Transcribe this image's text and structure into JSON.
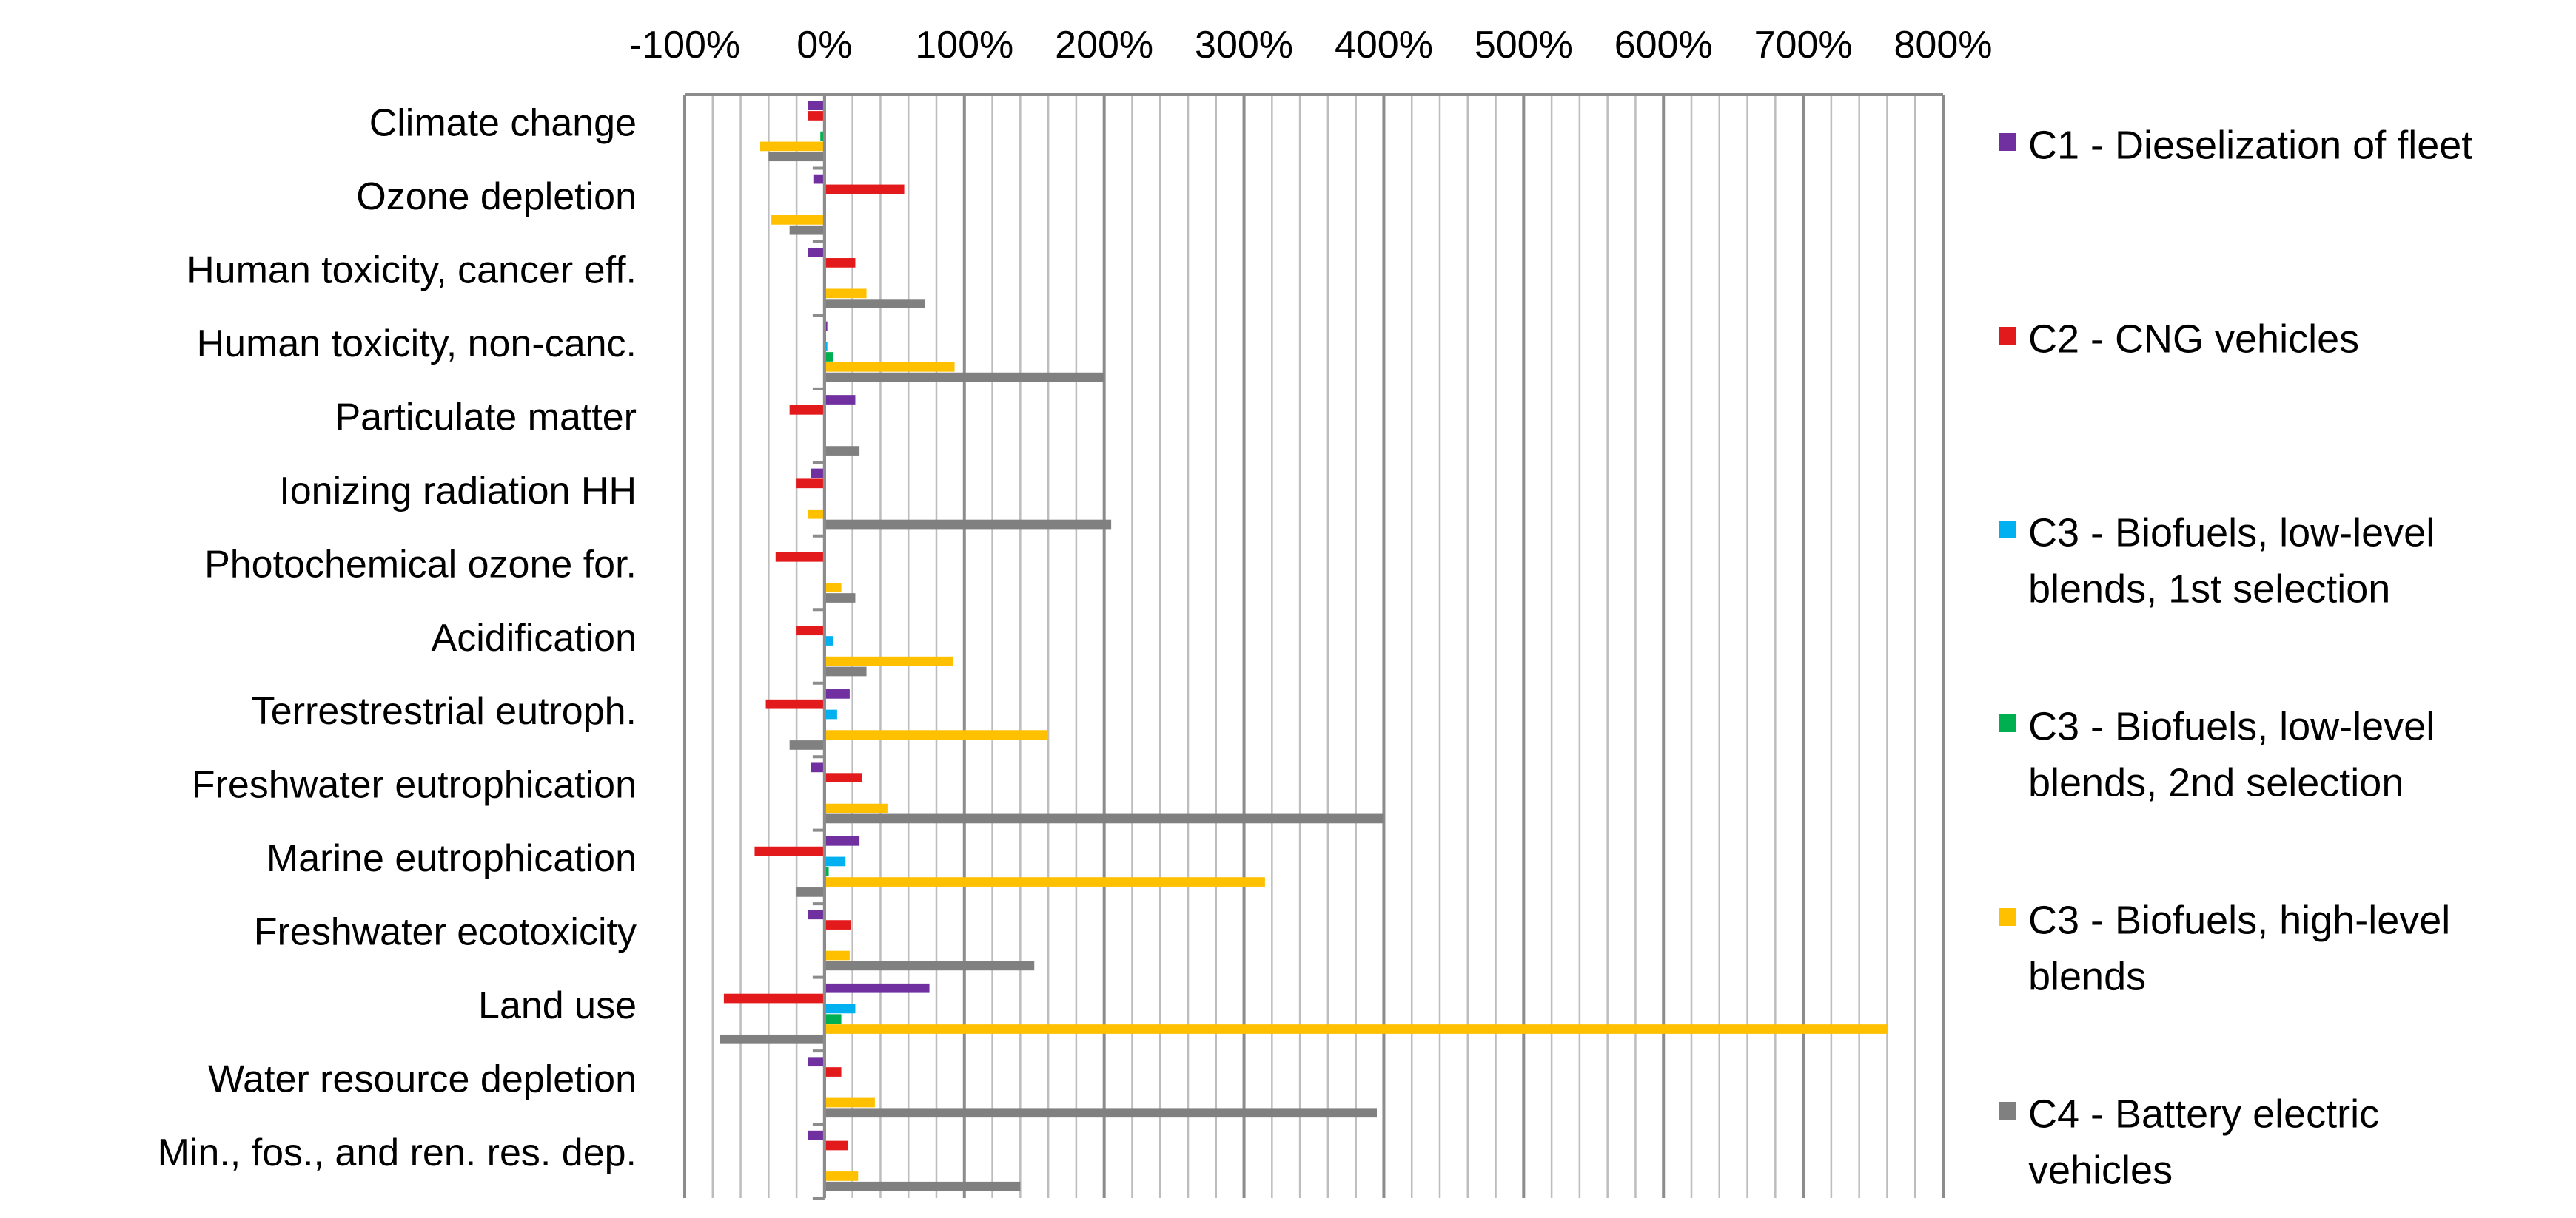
{
  "chart_data": {
    "type": "bar",
    "orientation": "horizontal",
    "x_unit": "%",
    "xlim": [
      -100,
      800
    ],
    "x_ticks": [
      -100,
      0,
      100,
      200,
      300,
      400,
      500,
      600,
      700,
      800
    ],
    "x_tick_labels": [
      "-100%",
      "0%",
      "100%",
      "200%",
      "300%",
      "400%",
      "500%",
      "600%",
      "700%",
      "800%"
    ],
    "x_axis_position": "top",
    "grid": true,
    "minor_grid_step": 20,
    "legend_position": "right",
    "title": "",
    "xlabel": "",
    "ylabel": "",
    "categories": [
      "Climate change",
      "Ozone depletion",
      "Human toxicity, cancer eff.",
      "Human toxicity, non-canc.",
      "Particulate matter",
      "Ionizing radiation HH",
      "Photochemical ozone for.",
      "Acidification",
      "Terrestrestrial eutroph.",
      "Freshwater eutrophication",
      "Marine eutrophication",
      "Freshwater ecotoxicity",
      "Land use",
      "Water resource depletion",
      "Min., fos., and ren. res. dep."
    ],
    "series": [
      {
        "name": "C1 - Dieselization of fleet",
        "color": "#7030A0",
        "values": [
          -12,
          -8,
          -12,
          2,
          22,
          -10,
          -1,
          -1,
          18,
          -10,
          25,
          -12,
          75,
          -12,
          -12
        ]
      },
      {
        "name": "C2 - CNG vehicles",
        "color": "#E31A1C",
        "values": [
          -12,
          57,
          22,
          1,
          -25,
          -20,
          -35,
          -20,
          -42,
          27,
          -50,
          19,
          -72,
          12,
          17
        ]
      },
      {
        "name": "C3 - Biofuels, low-level blends, 1st selection",
        "color": "#00B0F0",
        "values": [
          -1,
          0,
          1,
          2,
          0,
          0,
          0,
          6,
          9,
          1,
          15,
          1,
          22,
          1,
          1
        ]
      },
      {
        "name": "C3 - Biofuels, low-level blends, 2nd selection",
        "color": "#00B050",
        "values": [
          -3,
          0,
          1,
          6,
          0,
          0,
          0,
          1,
          1,
          1,
          3,
          1,
          12,
          1,
          1
        ]
      },
      {
        "name": "C3 - Biofuels, high-level blends",
        "color": "#FFC000",
        "values": [
          -46,
          -38,
          30,
          93,
          0,
          -12,
          12,
          92,
          160,
          45,
          315,
          18,
          760,
          36,
          24
        ]
      },
      {
        "name": "C4 - Battery electric vehicles",
        "color": "#808080",
        "values": [
          -40,
          -25,
          72,
          200,
          25,
          205,
          22,
          30,
          -25,
          400,
          -20,
          150,
          -75,
          395,
          140
        ]
      }
    ]
  }
}
